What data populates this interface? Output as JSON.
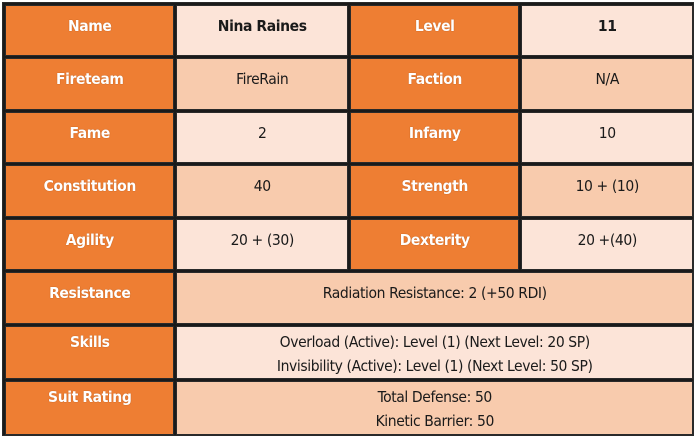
{
  "rows": {
    "r1": {
      "label_a": "Name",
      "value_a": "Nina Raines",
      "label_b": "Level",
      "value_b": "11"
    },
    "r2": {
      "label_a": "Fireteam",
      "value_a": "FireRain",
      "label_b": "Faction",
      "value_b": "N/A"
    },
    "r3": {
      "label_a": "Fame",
      "value_a": "2",
      "label_b": "Infamy",
      "value_b": "10"
    },
    "r4": {
      "label_a": "Constitution",
      "value_a": "40",
      "label_b": "Strength",
      "value_b": "10 + (10)"
    },
    "r5": {
      "label_a": "Agility",
      "value_a": "20 + (30)",
      "label_b": "Dexterity",
      "value_b": "20 +(40)"
    },
    "r6": {
      "label": "Resistance",
      "lines": [
        "Radiation Resistance: 2 (+50 RDI)"
      ]
    },
    "r7": {
      "label": "Skills",
      "lines": [
        "Overload (Active): Level (1) (Next Level: 20 SP)",
        "Invisibility (Active): Level (1) (Next Level: 50 SP)"
      ]
    },
    "r8": {
      "label": "Suit Rating",
      "lines": [
        "Total Defense: 50",
        "Kinetic Barrier: 50"
      ]
    }
  },
  "colors": {
    "label_bg": "#ee7e33",
    "value_light": "#fce4d8",
    "value_mid": "#f8cbad",
    "grid": "#1a1a1a"
  }
}
